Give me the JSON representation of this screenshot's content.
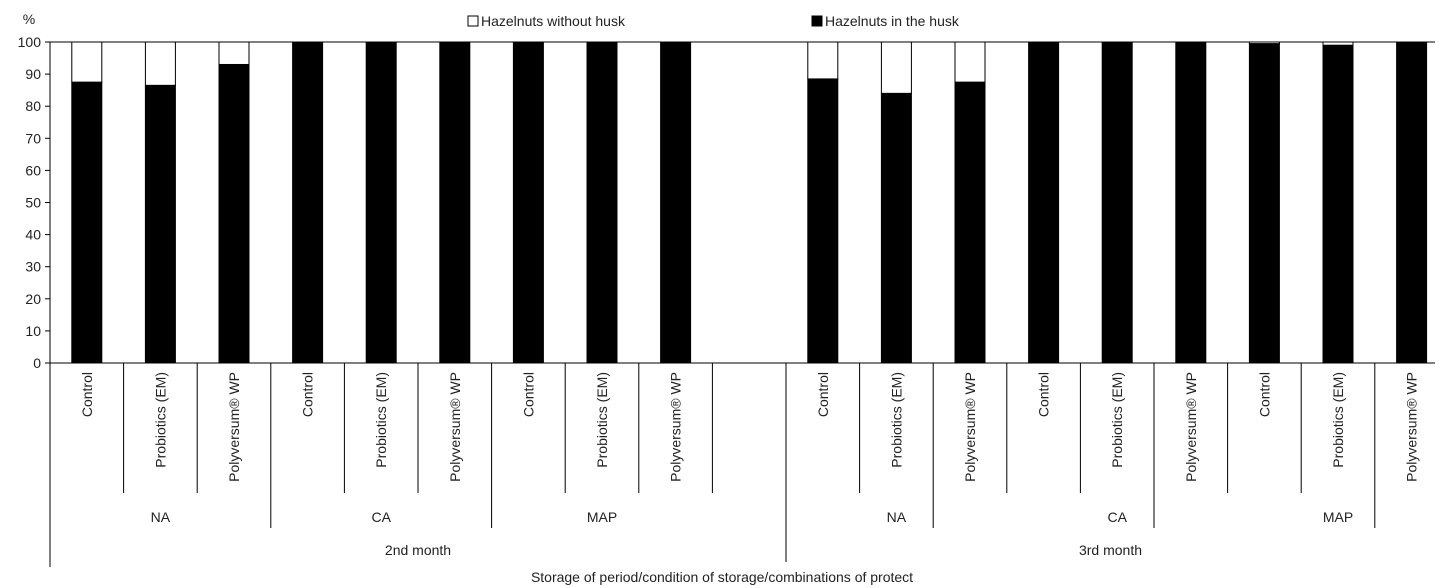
{
  "chart_data": {
    "type": "bar",
    "stacked": true,
    "ylabel": "%",
    "xlabel": "Storage of period/condition of storage/combinations of protect",
    "ylim": [
      0,
      100
    ],
    "yticks": [
      "0",
      "10",
      "20",
      "30",
      "40",
      "50",
      "60",
      "70",
      "80",
      "90",
      "100"
    ],
    "legend_position": "top",
    "legend": [
      {
        "name": "Hazelnuts without husk",
        "color": "#ffffff"
      },
      {
        "name": "Hazelnuts in the husk",
        "color": "#000000"
      }
    ],
    "period_labels": [
      "2nd month",
      "3rd month"
    ],
    "condition_labels": [
      "NA",
      "CA",
      "MAP",
      "NA",
      "CA",
      "MAP"
    ],
    "categories": [
      "Control",
      "Probiotics (EM)",
      "Polyversum® WP",
      "Control",
      "Probiotics (EM)",
      "Polyversum® WP",
      "Control",
      "Probiotics (EM)",
      "Polyversum® WP",
      "Control",
      "Probiotics (EM)",
      "Polyversum® WP",
      "Control",
      "Probiotics (EM)",
      "Polyversum® WP",
      "Control",
      "Probiotics (EM)",
      "Polyversum® WP"
    ],
    "series": [
      {
        "name": "Hazelnuts in the husk",
        "color": "#000000",
        "values": [
          87.5,
          86.5,
          93,
          100,
          100,
          100,
          100,
          100,
          100,
          88.5,
          84,
          87.5,
          100,
          100,
          100,
          99.5,
          99,
          100
        ]
      },
      {
        "name": "Hazelnuts without husk",
        "color": "#ffffff",
        "values": [
          12.5,
          13.5,
          7,
          0,
          0,
          0,
          0,
          0,
          0,
          11.5,
          16,
          12.5,
          0,
          0,
          0,
          0.5,
          1,
          0
        ]
      }
    ]
  }
}
